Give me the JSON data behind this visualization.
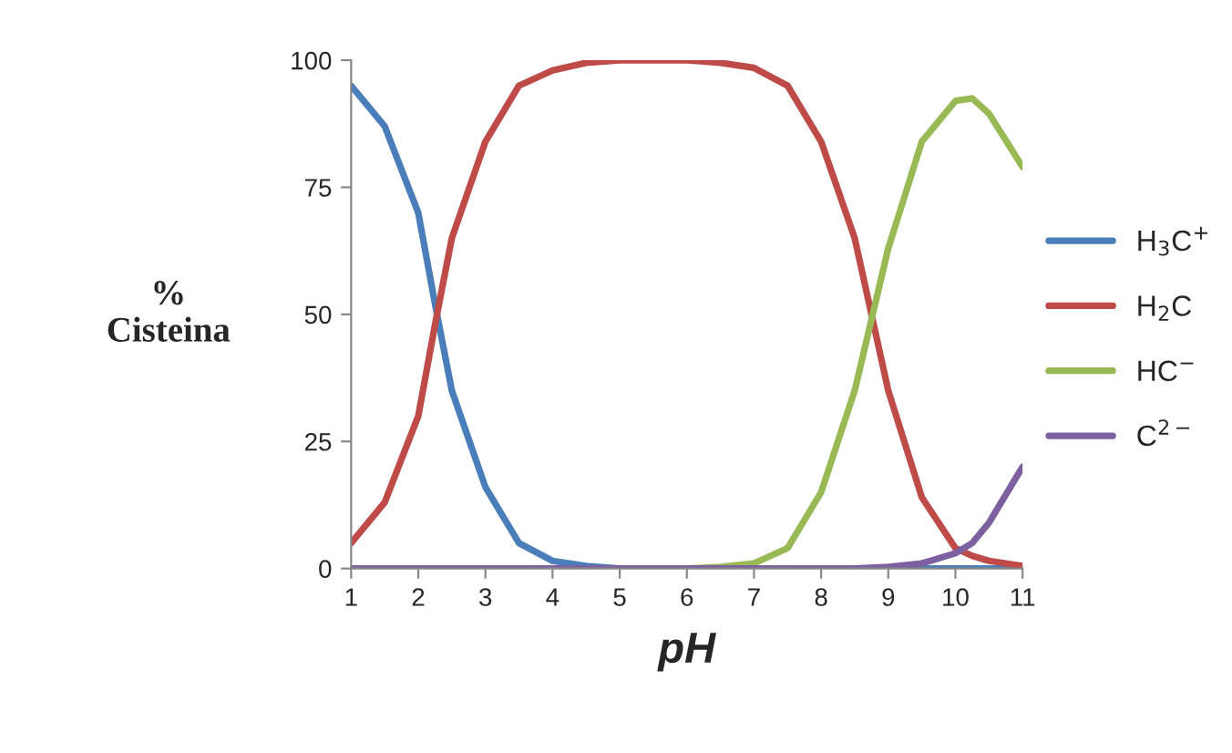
{
  "chart_data": {
    "type": "line",
    "xlabel": "pH",
    "ylabel": "%\nCisteina",
    "x": [
      1,
      1.5,
      2,
      2.25,
      2.5,
      3,
      3.5,
      4,
      4.5,
      5,
      5.5,
      6,
      6.5,
      7,
      7.5,
      8,
      8.5,
      9,
      9.5,
      10,
      10.25,
      10.5,
      11
    ],
    "series": [
      {
        "name": "H$_{3}$C$^{+}$",
        "color": "#4a7ebb",
        "values": [
          95,
          87,
          70,
          52,
          35,
          16,
          5,
          1.5,
          0.5,
          0,
          0,
          0,
          0,
          0,
          0,
          0,
          0,
          0,
          0,
          0,
          0,
          0,
          0
        ]
      },
      {
        "name": "H$_{2}$C",
        "color": "#be4b48",
        "values": [
          5,
          13,
          30,
          48,
          65,
          84,
          95,
          98,
          99.5,
          100,
          100,
          100,
          99.5,
          98.5,
          95,
          84,
          65,
          35,
          14,
          4,
          2.5,
          1.5,
          0.5
        ]
      },
      {
        "name": "HC$^{−}$",
        "color": "#98b954",
        "values": [
          null,
          null,
          null,
          null,
          null,
          null,
          null,
          null,
          null,
          null,
          0,
          0,
          0.3,
          1,
          4,
          15,
          35,
          63,
          84,
          92,
          92.5,
          89.5,
          79
        ]
      },
      {
        "name": "C$^{2−}$",
        "color": "#7d60a0",
        "values": [
          0,
          0,
          0,
          0,
          0,
          0,
          0,
          0,
          0,
          0,
          0,
          0,
          0,
          0,
          0,
          0,
          0,
          0.3,
          1,
          3,
          5,
          9,
          20
        ]
      }
    ],
    "xlim": [
      1,
      11
    ],
    "xticks": [
      1,
      2,
      3,
      4,
      5,
      6,
      7,
      8,
      9,
      10,
      11
    ],
    "ylim": [
      0,
      100
    ],
    "yticks": [
      0,
      25,
      50,
      75,
      100
    ],
    "grid": false,
    "legend": "right",
    "marker": "none",
    "line_style": "solid"
  }
}
